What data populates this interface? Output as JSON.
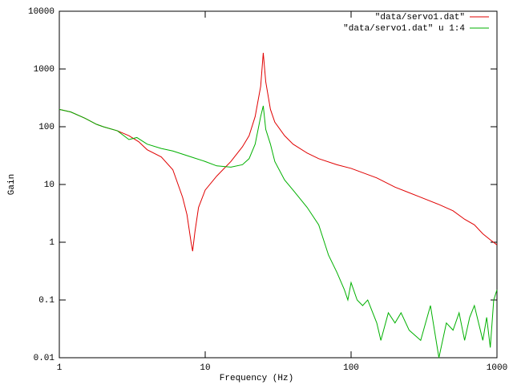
{
  "chart_data": {
    "type": "line",
    "xlabel": "Frequency (Hz)",
    "ylabel": "Gain",
    "xscale": "log",
    "yscale": "log",
    "xlim": [
      1,
      1000
    ],
    "xticks": [
      1,
      10,
      100,
      1000
    ],
    "ylim": [
      0.01,
      10000
    ],
    "yticks": [
      0.01,
      0.1,
      1,
      10,
      100,
      1000,
      10000
    ],
    "legend": "top-right",
    "series": [
      {
        "name": "\"data/servo1.dat\"",
        "color": "#e00000",
        "x": [
          1,
          1.2,
          1.5,
          1.8,
          2,
          2.5,
          3,
          3.5,
          4,
          5,
          6,
          7,
          7.5,
          8,
          8.2,
          8.5,
          9,
          10,
          12,
          15,
          18,
          20,
          22,
          24,
          25,
          26,
          28,
          30,
          35,
          40,
          50,
          60,
          80,
          100,
          150,
          200,
          300,
          400,
          500,
          600,
          700,
          800,
          900,
          1000
        ],
        "values": [
          200,
          180,
          140,
          110,
          100,
          85,
          70,
          55,
          40,
          30,
          18,
          6,
          3,
          1,
          0.7,
          1.5,
          4,
          8,
          14,
          25,
          45,
          70,
          150,
          500,
          1900,
          600,
          200,
          120,
          70,
          50,
          35,
          28,
          22,
          19,
          13,
          9,
          6,
          4.5,
          3.5,
          2.5,
          2,
          1.4,
          1.1,
          0.9
        ]
      },
      {
        "name": "\"data/servo1.dat\" u 1:4",
        "color": "#00b000",
        "x": [
          1,
          1.2,
          1.5,
          1.8,
          2,
          2.5,
          3,
          3.4,
          4,
          5,
          6,
          8,
          10,
          12,
          15,
          18,
          20,
          22,
          24,
          25,
          26,
          28,
          30,
          35,
          40,
          50,
          60,
          70,
          80,
          90,
          95,
          100,
          110,
          120,
          130,
          150,
          160,
          180,
          200,
          220,
          250,
          300,
          350,
          400,
          450,
          500,
          550,
          600,
          650,
          700,
          800,
          850,
          900,
          950,
          1000
        ],
        "values": [
          200,
          180,
          140,
          110,
          100,
          85,
          60,
          65,
          50,
          42,
          38,
          30,
          25,
          21,
          20,
          22,
          28,
          50,
          150,
          230,
          90,
          50,
          25,
          12,
          8,
          4,
          2,
          0.6,
          0.3,
          0.15,
          0.1,
          0.2,
          0.1,
          0.08,
          0.1,
          0.04,
          0.02,
          0.06,
          0.04,
          0.06,
          0.03,
          0.02,
          0.08,
          0.01,
          0.04,
          0.03,
          0.06,
          0.02,
          0.05,
          0.08,
          0.02,
          0.05,
          0.015,
          0.1,
          0.15
        ]
      }
    ]
  }
}
